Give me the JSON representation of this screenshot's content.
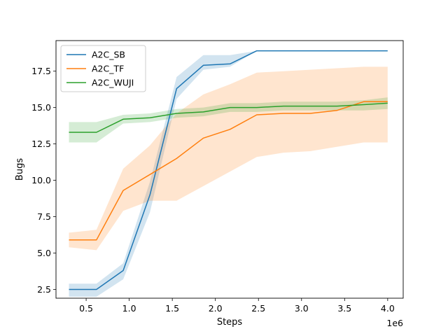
{
  "chart_data": {
    "type": "line",
    "title": "",
    "xlabel": "Steps",
    "ylabel": "Bugs",
    "x_offset_label": "1e6",
    "xlim": [
      0.15,
      4.18
    ],
    "ylim": [
      1.9,
      19.6
    ],
    "xticks": [
      0.5,
      1.0,
      1.5,
      2.0,
      2.5,
      3.0,
      3.5,
      4.0
    ],
    "xtick_labels": [
      "0.5",
      "1.0",
      "1.5",
      "2.0",
      "2.5",
      "3.0",
      "3.5",
      "4.0"
    ],
    "yticks": [
      2.5,
      5.0,
      7.5,
      10.0,
      12.5,
      15.0,
      17.5
    ],
    "ytick_labels": [
      "2.5",
      "5.0",
      "7.5",
      "10.0",
      "12.5",
      "15.0",
      "17.5"
    ],
    "grid": false,
    "legend_position": "top-left",
    "series": [
      {
        "name": "A2C_SB",
        "color": "#1f77b4",
        "x": [
          0.3,
          0.62,
          0.93,
          1.24,
          1.55,
          1.86,
          2.17,
          2.48,
          2.79,
          3.1,
          3.41,
          3.72,
          4.0
        ],
        "values": [
          2.5,
          2.5,
          3.8,
          9.0,
          16.3,
          17.9,
          18.0,
          18.9,
          18.9,
          18.9,
          18.9,
          18.9,
          18.9
        ],
        "lower": [
          2.0,
          2.0,
          3.2,
          7.8,
          15.6,
          17.6,
          17.8,
          18.9,
          18.9,
          18.9,
          18.9,
          18.9,
          18.9
        ],
        "upper": [
          2.9,
          2.9,
          4.3,
          9.9,
          17.1,
          18.6,
          18.6,
          18.9,
          18.9,
          18.9,
          18.9,
          18.9,
          18.9
        ]
      },
      {
        "name": "A2C_TF",
        "color": "#ff7f0e",
        "x": [
          0.3,
          0.62,
          0.93,
          1.24,
          1.55,
          1.86,
          2.17,
          2.48,
          2.79,
          3.1,
          3.41,
          3.72,
          4.0
        ],
        "values": [
          5.9,
          5.9,
          9.3,
          10.4,
          11.5,
          12.9,
          13.5,
          14.5,
          14.6,
          14.6,
          14.8,
          15.4,
          15.4
        ],
        "lower": [
          5.4,
          5.2,
          7.9,
          8.6,
          8.6,
          9.6,
          10.6,
          11.6,
          11.9,
          12.0,
          12.3,
          12.6,
          12.6
        ],
        "upper": [
          6.4,
          6.6,
          10.8,
          12.4,
          14.6,
          15.9,
          16.6,
          17.4,
          17.5,
          17.6,
          17.7,
          17.8,
          17.8
        ]
      },
      {
        "name": "A2C_WUJI",
        "color": "#2ca02c",
        "x": [
          0.3,
          0.62,
          0.93,
          1.24,
          1.55,
          1.86,
          2.17,
          2.48,
          2.79,
          3.1,
          3.41,
          3.72,
          4.0
        ],
        "values": [
          13.3,
          13.3,
          14.2,
          14.3,
          14.6,
          14.7,
          15.0,
          15.0,
          15.1,
          15.1,
          15.1,
          15.2,
          15.3
        ],
        "lower": [
          12.6,
          12.6,
          13.9,
          14.0,
          14.3,
          14.4,
          14.7,
          14.7,
          14.8,
          14.8,
          14.8,
          14.8,
          14.9
        ],
        "upper": [
          14.0,
          14.0,
          14.5,
          14.6,
          14.9,
          15.0,
          15.3,
          15.3,
          15.4,
          15.4,
          15.4,
          15.5,
          15.7
        ]
      }
    ]
  }
}
